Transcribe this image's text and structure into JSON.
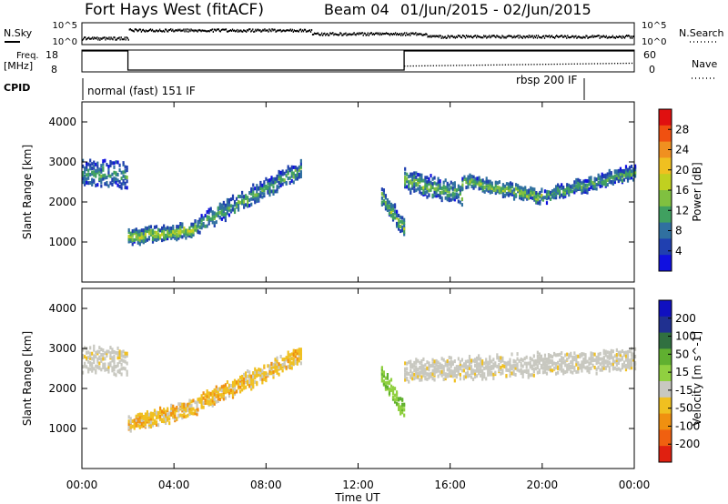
{
  "header": {
    "radar": "Fort Hays West (fitACF)",
    "beam": "Beam 04",
    "date_range": "01/Jun/2015 - 02/Jun/2015"
  },
  "noise_panel": {
    "left_label": "N.Sky",
    "right_label": "N.Search",
    "left_ticks": [
      "10^5",
      "10^0"
    ],
    "right_ticks": [
      "10^5",
      "10^0"
    ]
  },
  "freq_panel": {
    "left_label_line1": "Freq.",
    "left_label_line2": "[MHz]",
    "left_ticks": [
      "18",
      "8"
    ],
    "right_label": "Nave",
    "right_ticks": [
      "60",
      "0"
    ]
  },
  "cpid_panel": {
    "label": "CPID",
    "program_1": "normal (fast) 151 IF",
    "program_2": "rbsp 200 IF"
  },
  "x_axis": {
    "label": "Time UT",
    "ticks": [
      "00:00",
      "04:00",
      "08:00",
      "12:00",
      "16:00",
      "20:00",
      "00:00"
    ]
  },
  "colors": {
    "power_scale": [
      "#1010e0",
      "#2040b0",
      "#3070a0",
      "#40a060",
      "#80c040",
      "#c0d020",
      "#f0c020",
      "#f09020",
      "#f05010",
      "#e01010"
    ],
    "velocity_scale": [
      "#1010c0",
      "#203090",
      "#307040",
      "#60b030",
      "#90d040",
      "#c8c8c0",
      "#f0c020",
      "#f09010",
      "#f06010",
      "#e02010"
    ],
    "ground_scatter": "#c8c8c0"
  },
  "chart_data": [
    {
      "type": "heatmap",
      "panel": "power",
      "title": "",
      "xlabel": "Time UT",
      "ylabel": "Slant Range [km]",
      "x_range_hours": [
        0,
        24
      ],
      "ylim": [
        0,
        4500
      ],
      "y_ticks": [
        1000,
        2000,
        3000,
        4000
      ],
      "colorbar": {
        "label": "Power [dB]",
        "range": [
          0,
          32
        ],
        "tick_values": [
          4,
          8,
          12,
          16,
          20,
          24,
          28
        ],
        "tick_labels": [
          "4",
          "8",
          "12",
          "16",
          "20",
          "24",
          "28"
        ]
      },
      "features": [
        {
          "hours": [
            0.0,
            2.0
          ],
          "range_start": 2700,
          "range_end": 2650,
          "width": 600,
          "power": 10
        },
        {
          "hours": [
            2.0,
            5.0
          ],
          "range_start": 1100,
          "range_end": 1300,
          "width": 350,
          "power": 17
        },
        {
          "hours": [
            5.0,
            9.5
          ],
          "range_start": 1400,
          "range_end": 2800,
          "width": 400,
          "power": 12
        },
        {
          "hours": [
            13.0,
            14.0
          ],
          "range_start": 2100,
          "range_end": 1300,
          "width": 400,
          "power": 14
        },
        {
          "hours": [
            14.0,
            16.5
          ],
          "range_start": 2500,
          "range_end": 2200,
          "width": 500,
          "power": 13
        },
        {
          "hours": [
            16.5,
            20.0
          ],
          "range_start": 2500,
          "range_end": 2100,
          "width": 300,
          "power": 15
        },
        {
          "hours": [
            20.0,
            24.0
          ],
          "range_start": 2100,
          "range_end": 2750,
          "width": 300,
          "power": 12
        }
      ]
    },
    {
      "type": "heatmap",
      "panel": "velocity",
      "title": "",
      "xlabel": "Time UT",
      "ylabel": "Slant Range [km]",
      "x_range_hours": [
        0,
        24
      ],
      "ylim": [
        0,
        4500
      ],
      "y_ticks": [
        1000,
        2000,
        3000,
        4000
      ],
      "colorbar": {
        "label": "Velocity [m s^-1]",
        "tick_labels": [
          "200",
          "100",
          "50",
          "15",
          "-15",
          "-50",
          "-100",
          "-200"
        ]
      },
      "features": [
        {
          "hours": [
            0.0,
            2.0
          ],
          "range_start": 2700,
          "range_end": 2650,
          "width": 600,
          "velocity": 0
        },
        {
          "hours": [
            2.0,
            5.0
          ],
          "range_start": 1100,
          "range_end": 1500,
          "width": 350,
          "velocity": -30
        },
        {
          "hours": [
            5.0,
            9.5
          ],
          "range_start": 1600,
          "range_end": 2800,
          "width": 400,
          "velocity": -20
        },
        {
          "hours": [
            13.0,
            14.0
          ],
          "range_start": 2300,
          "range_end": 1400,
          "width": 400,
          "velocity": 30
        },
        {
          "hours": [
            14.0,
            24.0
          ],
          "range_start": 2400,
          "range_end": 2700,
          "width": 500,
          "velocity": 0
        }
      ]
    },
    {
      "type": "line",
      "panel": "frequency",
      "ylabel": "Freq. [MHz]",
      "ylim": [
        8,
        18
      ],
      "series": [
        {
          "x_hours": [
            0,
            2,
            2,
            14,
            14,
            24
          ],
          "values": [
            18,
            18,
            8,
            8,
            18,
            18
          ]
        }
      ]
    }
  ]
}
